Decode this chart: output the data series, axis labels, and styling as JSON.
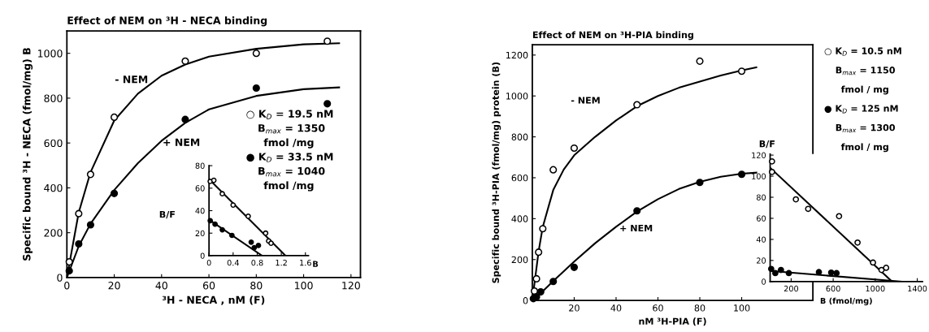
{
  "chart_data": [
    {
      "type": "scatter",
      "title": "Effect of NEM on ³H - NECA binding",
      "xlabel": "³H - NECA , nM (F)",
      "ylabel": "Specific bound ³H - NECA (fmol/mg) B",
      "xlim": [
        0,
        124
      ],
      "ylim": [
        0,
        1100
      ],
      "xticks": [
        0,
        20,
        40,
        60,
        80,
        100,
        120
      ],
      "yticks": [
        0,
        200,
        400,
        600,
        800,
        1000
      ],
      "series": [
        {
          "type": "scatter",
          "marker": "circle",
          "color": "#ffffff",
          "x": [
            1,
            5,
            10,
            20,
            50,
            80,
            110
          ],
          "values": [
            70,
            285,
            460,
            715,
            965,
            1000,
            1054
          ]
        },
        {
          "type": "scatter",
          "marker": "circle",
          "color": "#000000",
          "x": [
            1,
            5,
            10,
            20,
            50,
            80,
            110
          ],
          "values": [
            30,
            150,
            235,
            375,
            705,
            845,
            775
          ]
        },
        {
          "type": "line",
          "line_style": "solid",
          "color": "#000000",
          "x": [
            0,
            5,
            10,
            20,
            30,
            40,
            50,
            60,
            80,
            100,
            115
          ],
          "values": [
            0,
            290,
            470,
            700,
            820,
            900,
            950,
            985,
            1020,
            1040,
            1045
          ]
        },
        {
          "type": "line",
          "line_style": "solid",
          "color": "#000000",
          "x": [
            0,
            5,
            10,
            20,
            30,
            40,
            50,
            60,
            80,
            100,
            115
          ],
          "values": [
            0,
            140,
            240,
            390,
            510,
            610,
            690,
            750,
            810,
            840,
            848
          ]
        }
      ],
      "annotations": [
        "- NEM",
        "+ NEM",
        "○ K$_{D}$ = 19.5 nM",
        "B$_{max}$ = 1350",
        "fmol /mg",
        "● K$_{D}$ = 33.5 nM",
        "B$_{max}$ = 1040",
        "fmol /mg"
      ]
    },
    {
      "type": "scatter",
      "xlabel": "B",
      "ylabel": "B/F",
      "xlim": [
        0,
        1.65
      ],
      "ylim": [
        0,
        80
      ],
      "xticks": [
        0,
        0.4,
        0.8,
        1.2,
        1.6
      ],
      "yticks": [
        0,
        20,
        40,
        60,
        80
      ],
      "series": [
        {
          "type": "scatter",
          "marker": "circle",
          "color": "#ffffff",
          "x": [
            0.02,
            0.08,
            0.22,
            0.4,
            0.65,
            0.94,
            0.99,
            1.03
          ],
          "values": [
            66,
            67,
            55,
            45,
            35,
            20,
            13,
            11
          ]
        },
        {
          "type": "scatter",
          "marker": "circle",
          "color": "#000000",
          "x": [
            0.02,
            0.1,
            0.22,
            0.38,
            0.7,
            0.75,
            0.82
          ],
          "values": [
            31,
            28,
            23,
            18,
            12,
            7,
            9
          ]
        },
        {
          "type": "line",
          "line_style": "solid",
          "color": "#000000",
          "x": [
            0,
            1.27
          ],
          "values": [
            68,
            0
          ]
        },
        {
          "type": "line",
          "line_style": "solid",
          "color": "#000000",
          "x": [
            0,
            0.88
          ],
          "values": [
            32,
            0
          ]
        }
      ]
    },
    {
      "type": "scatter",
      "title": "Effect of NEM on ³H-PIA binding",
      "xlabel": "nM ³H-PIA (F)",
      "ylabel": "Specific bound ³H-PIA (fmol/mg) protein (B)",
      "xlim": [
        0,
        134
      ],
      "ylim": [
        0,
        1250
      ],
      "xticks": [
        20,
        40,
        60,
        80,
        100
      ],
      "yticks": [
        0,
        200,
        400,
        600,
        800,
        1000,
        1200
      ],
      "series": [
        {
          "type": "scatter",
          "marker": "circle",
          "color": "#ffffff",
          "x": [
            1,
            2,
            3,
            5,
            10,
            20,
            50,
            80,
            100
          ],
          "values": [
            46,
            106,
            236,
            351,
            639,
            745,
            957,
            1170,
            1121
          ]
        },
        {
          "type": "scatter",
          "marker": "circle",
          "color": "#000000",
          "x": [
            0.5,
            2,
            4,
            10,
            20,
            50,
            80,
            100
          ],
          "values": [
            9,
            17,
            42,
            93,
            162,
            438,
            577,
            617
          ]
        },
        {
          "type": "line",
          "line_style": "solid",
          "color": "#000000",
          "x": [
            0,
            1,
            2,
            3,
            5,
            10,
            15,
            20,
            30,
            40,
            50,
            60,
            70,
            80,
            90,
            100,
            107
          ],
          "values": [
            0,
            80,
            160,
            240,
            360,
            540,
            640,
            710,
            800,
            880,
            950,
            1000,
            1040,
            1070,
            1100,
            1125,
            1140
          ]
        },
        {
          "type": "line",
          "line_style": "solid",
          "color": "#000000",
          "x": [
            0,
            5,
            10,
            20,
            30,
            40,
            50,
            60,
            70,
            80,
            90,
            100,
            107
          ],
          "values": [
            0,
            45,
            95,
            190,
            280,
            360,
            435,
            495,
            545,
            580,
            605,
            620,
            625
          ]
        }
      ],
      "annotations": [
        "- NEM",
        "+ NEM",
        "○ K$_{D}$ = 10.5 nM",
        "B$_{max}$ = 1150",
        "fmol / mg",
        "● K$_{D}$ = 125 nM",
        "B$_{max}$ = 1300",
        "fmol / mg"
      ]
    },
    {
      "type": "scatter",
      "xlabel": "B (fmol/mg)",
      "ylabel": "B/F",
      "xlim": [
        0,
        1450
      ],
      "ylim": [
        0,
        121
      ],
      "xticks": [
        200,
        600,
        1000,
        1400
      ],
      "yticks": [
        0,
        20,
        40,
        60,
        80,
        100,
        120
      ],
      "series": [
        {
          "type": "scatter",
          "marker": "circle",
          "color": "#ffffff",
          "x": [
            18,
            18,
            245,
            362,
            656,
            832,
            979,
            1060,
            1104
          ],
          "values": [
            114,
            104,
            78,
            69,
            62,
            37,
            18,
            11,
            13
          ]
        },
        {
          "type": "scatter",
          "marker": "circle",
          "color": "#000000",
          "x": [
            10,
            49,
            103,
            178,
            464,
            581,
            632
          ],
          "values": [
            12,
            8,
            11,
            8,
            9,
            8.5,
            8
          ]
        },
        {
          "type": "line",
          "line_style": "solid",
          "color": "#000000",
          "x": [
            0,
            1160
          ],
          "values": [
            108,
            0
          ]
        },
        {
          "type": "line",
          "line_style": "solid",
          "color": "#000000",
          "x": [
            0,
            1250
          ],
          "values": [
            10,
            0
          ]
        }
      ]
    }
  ]
}
